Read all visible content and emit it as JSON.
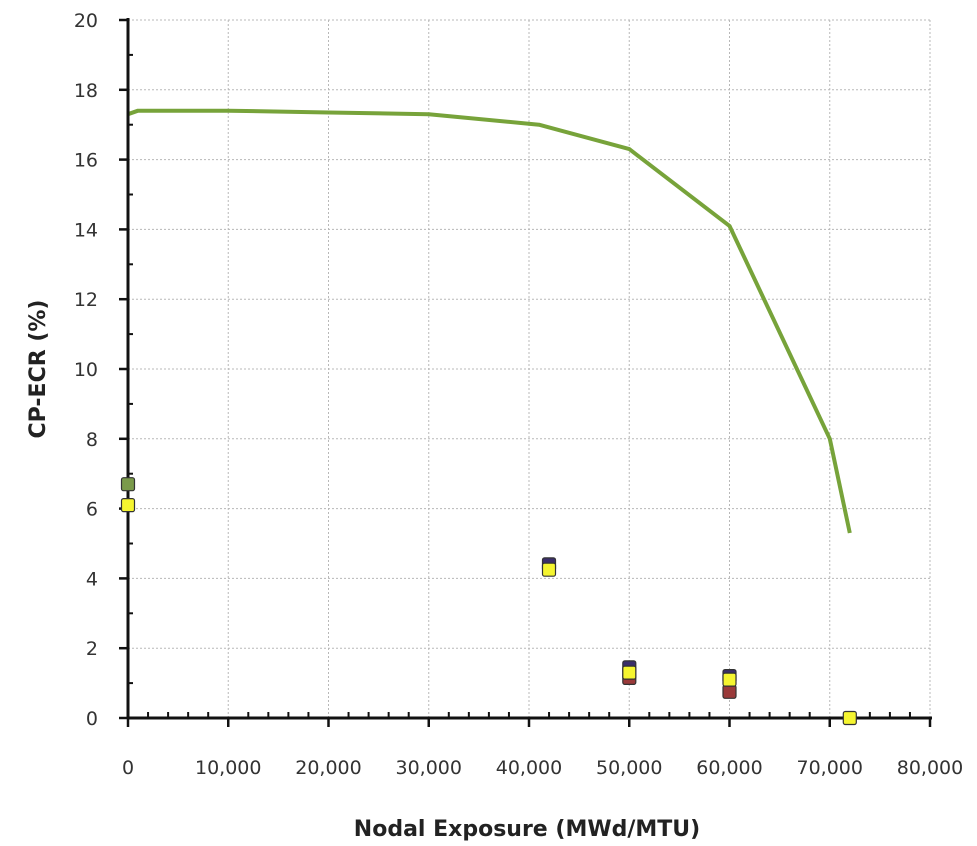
{
  "chart_data": {
    "type": "scatter",
    "title": "",
    "xlabel": "Nodal Exposure (MWd/MTU)",
    "ylabel": "CP-ECR (%)",
    "xlim": [
      0,
      80000
    ],
    "ylim": [
      0,
      20
    ],
    "x_ticks": [
      0,
      10000,
      20000,
      30000,
      40000,
      50000,
      60000,
      70000,
      80000
    ],
    "x_tick_labels": [
      "0",
      "10,000",
      "20,000",
      "30,000",
      "40,000",
      "50,000",
      "60,000",
      "70,000",
      "80,000"
    ],
    "y_ticks": [
      0,
      2,
      4,
      6,
      8,
      10,
      12,
      14,
      16,
      18,
      20
    ],
    "y_tick_labels": [
      "0",
      "2",
      "4",
      "6",
      "8",
      "10",
      "12",
      "14",
      "16",
      "18",
      "20"
    ],
    "grid": true,
    "legend": "none",
    "limit_line": {
      "color": "#77a33a",
      "x": [
        0,
        1000,
        10000,
        20000,
        30000,
        41000,
        50000,
        60000,
        70000,
        72000
      ],
      "y": [
        17.3,
        17.4,
        17.4,
        17.35,
        17.3,
        17.0,
        16.3,
        14.1,
        8.0,
        5.3
      ]
    },
    "series": [
      {
        "marker_color": "#7a9a4a",
        "x": [
          0
        ],
        "y": [
          6.7
        ]
      },
      {
        "marker_color": "#3a2e6a",
        "x": [
          42000,
          50000,
          60000
        ],
        "y": [
          4.4,
          1.45,
          1.2
        ]
      },
      {
        "marker_color": "#9a3a3a",
        "x": [
          50000,
          60000
        ],
        "y": [
          1.15,
          0.75
        ]
      },
      {
        "marker_color": "#f5f530",
        "x": [
          0,
          42000,
          50000,
          60000,
          72000
        ],
        "y": [
          6.1,
          4.25,
          1.3,
          1.1,
          0.0
        ]
      }
    ]
  }
}
